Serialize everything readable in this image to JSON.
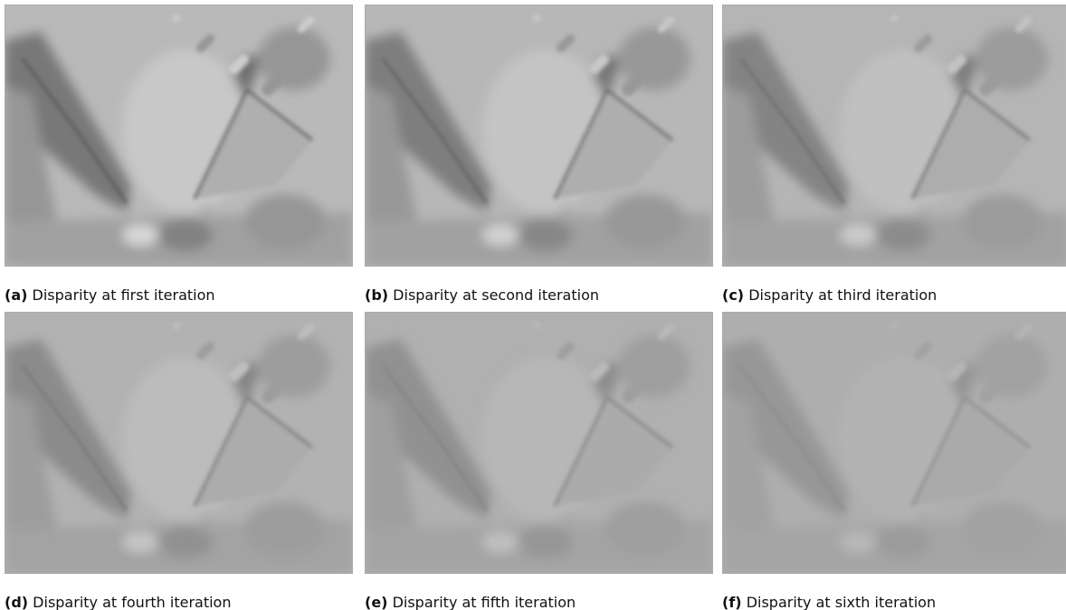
{
  "panels": [
    {
      "label": "(a)",
      "caption": "Disparity at first iteration"
    },
    {
      "label": "(b)",
      "caption": "Disparity at second iteration"
    },
    {
      "label": "(c)",
      "caption": "Disparity at third iteration"
    },
    {
      "label": "(d)",
      "caption": "Disparity at fourth iteration"
    },
    {
      "label": "(e)",
      "caption": "Disparity at fifth iteration"
    },
    {
      "label": "(f)",
      "caption": "Disparity at sixth iteration"
    }
  ]
}
